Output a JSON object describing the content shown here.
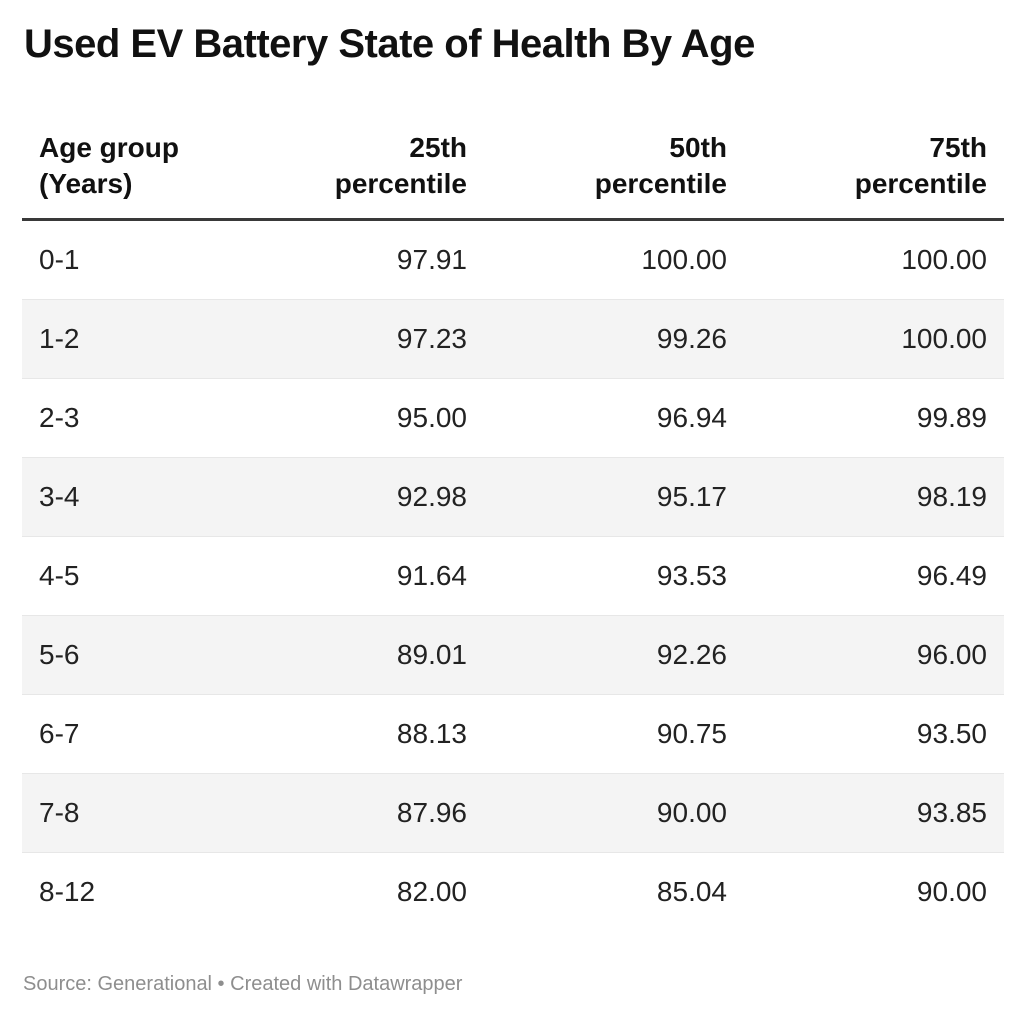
{
  "title": "Used EV Battery State of Health By Age",
  "table": {
    "headers": [
      "Age group\n(Years)",
      "25th\npercentile",
      "50th\npercentile",
      "75th\npercentile"
    ],
    "rows": [
      [
        "0-1",
        "97.91",
        "100.00",
        "100.00"
      ],
      [
        "1-2",
        "97.23",
        "99.26",
        "100.00"
      ],
      [
        "2-3",
        "95.00",
        "96.94",
        "99.89"
      ],
      [
        "3-4",
        "92.98",
        "95.17",
        "98.19"
      ],
      [
        "4-5",
        "91.64",
        "93.53",
        "96.49"
      ],
      [
        "5-6",
        "89.01",
        "92.26",
        "96.00"
      ],
      [
        "6-7",
        "88.13",
        "90.75",
        "93.50"
      ],
      [
        "7-8",
        "87.96",
        "90.00",
        "93.85"
      ],
      [
        "8-12",
        "82.00",
        "85.04",
        "90.00"
      ]
    ]
  },
  "footer": {
    "text": "Source: Generational • Created with Datawrapper"
  },
  "colors": {
    "stripe": "#f4f4f4",
    "header_rule": "#393939",
    "row_border": "#e7e7e7",
    "text": "#1d1d1d",
    "footer_text": "#8e8e8e",
    "background": "#ffffff"
  },
  "chart_data": {
    "type": "table",
    "title": "Used EV Battery State of Health By Age",
    "categories": [
      "0-1",
      "1-2",
      "2-3",
      "3-4",
      "4-5",
      "5-6",
      "6-7",
      "7-8",
      "8-12"
    ],
    "xlabel": "Age group (Years)",
    "series": [
      {
        "name": "25th percentile",
        "values": [
          97.91,
          97.23,
          95.0,
          92.98,
          91.64,
          89.01,
          88.13,
          87.96,
          82.0
        ]
      },
      {
        "name": "50th percentile",
        "values": [
          100.0,
          99.26,
          96.94,
          95.17,
          93.53,
          92.26,
          90.75,
          90.0,
          85.04
        ]
      },
      {
        "name": "75th percentile",
        "values": [
          100.0,
          100.0,
          99.89,
          98.19,
          96.49,
          96.0,
          93.5,
          93.85,
          90.0
        ]
      }
    ],
    "annotations": [
      "Source: Generational",
      "Created with Datawrapper"
    ],
    "layout_hints": {
      "zebra_striping": true,
      "numeric_alignment": "right",
      "grid": "horizontal-row-rules"
    }
  }
}
